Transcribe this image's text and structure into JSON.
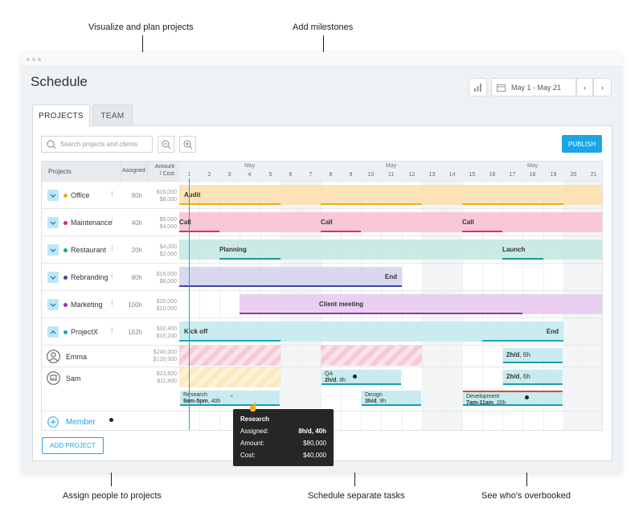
{
  "callouts": {
    "top_left": "Visualize and plan projects",
    "top_right": "Add milestones",
    "bottom_left": "Assign people to projects",
    "bottom_mid": "Schedule separate tasks",
    "bottom_right": "See who's overbooked"
  },
  "app": {
    "title": "Schedule",
    "date_range": "May 1 - May 21",
    "tabs": [
      "PROJECTS",
      "TEAM"
    ],
    "active_tab": "PROJECTS",
    "search_placeholder": "Search projects and clients",
    "publish": "PUBLISH",
    "add_project": "ADD PROJECT"
  },
  "columns": {
    "projects": "Projects",
    "assigned": "Assigned",
    "amount": "Amount",
    "cost": "/ Cost"
  },
  "months": [
    "May",
    "May",
    "May"
  ],
  "days": [
    "1",
    "2",
    "3",
    "4",
    "5",
    "6",
    "7",
    "8",
    "9",
    "10",
    "11",
    "12",
    "13",
    "14",
    "15",
    "16",
    "17",
    "18",
    "19",
    "20",
    "21"
  ],
  "projects": [
    {
      "name": "Office",
      "hours": "80h",
      "amount": "$16,000",
      "cost": "$8,000",
      "color": "#f5a623",
      "expanded": false
    },
    {
      "name": "Maintenance",
      "hours": "40h",
      "amount": "$8,000",
      "cost": "$4,000",
      "color": "#e02c5c",
      "expanded": false
    },
    {
      "name": "Restaurant",
      "hours": "20h",
      "amount": "$4,000",
      "cost": "$2,000",
      "color": "#1a9e8f",
      "expanded": false
    },
    {
      "name": "Rebranding",
      "hours": "80h",
      "amount": "$16,000",
      "cost": "$8,000",
      "color": "#3b44a6",
      "expanded": false
    },
    {
      "name": "Marketing",
      "hours": "100h",
      "amount": "$20,000",
      "cost": "$10,000",
      "color": "#9b2fae",
      "expanded": false
    },
    {
      "name": "ProjectX",
      "hours": "162h",
      "amount": "$32,400",
      "cost": "$16,200",
      "color": "#1aa6c0",
      "expanded": true
    }
  ],
  "bar_labels": {
    "audit": "Audit",
    "call1": "Call",
    "call2": "Call",
    "call3": "Call",
    "planning": "Planning",
    "launch": "Launch",
    "end_rebrand": "End",
    "client_meeting": "Client meeting",
    "kickoff": "Kick off",
    "end_x": "End"
  },
  "people": [
    {
      "name": "Emma",
      "amount": "$240,000",
      "cost": "$120,000"
    },
    {
      "name": "Sam",
      "amount": "$23,600",
      "cost": "$11,800"
    }
  ],
  "person_tasks": {
    "emma_alloc": {
      "rate": "2h/d",
      "hours": "6h"
    },
    "sam_alloc": {
      "rate": "2h/d",
      "hours": "6h"
    },
    "qa": {
      "title": "QA",
      "rate": "2h/d",
      "hours": "8h"
    },
    "research": {
      "title": "Research",
      "time": "9am-5pm",
      "hours": "40h"
    },
    "design": {
      "title": "Design",
      "rate": "3h/d",
      "hours": "9h"
    },
    "development": {
      "title": "Development",
      "time": "7am-11am",
      "hours": "20h"
    }
  },
  "add_member": "Member",
  "tooltip": {
    "title": "Research",
    "rows": [
      {
        "label": "Assigned:",
        "value": "8h/d, 40h"
      },
      {
        "label": "Amount:",
        "value": "$80,000"
      },
      {
        "label": "Cost:",
        "value": "$40,000"
      }
    ]
  }
}
